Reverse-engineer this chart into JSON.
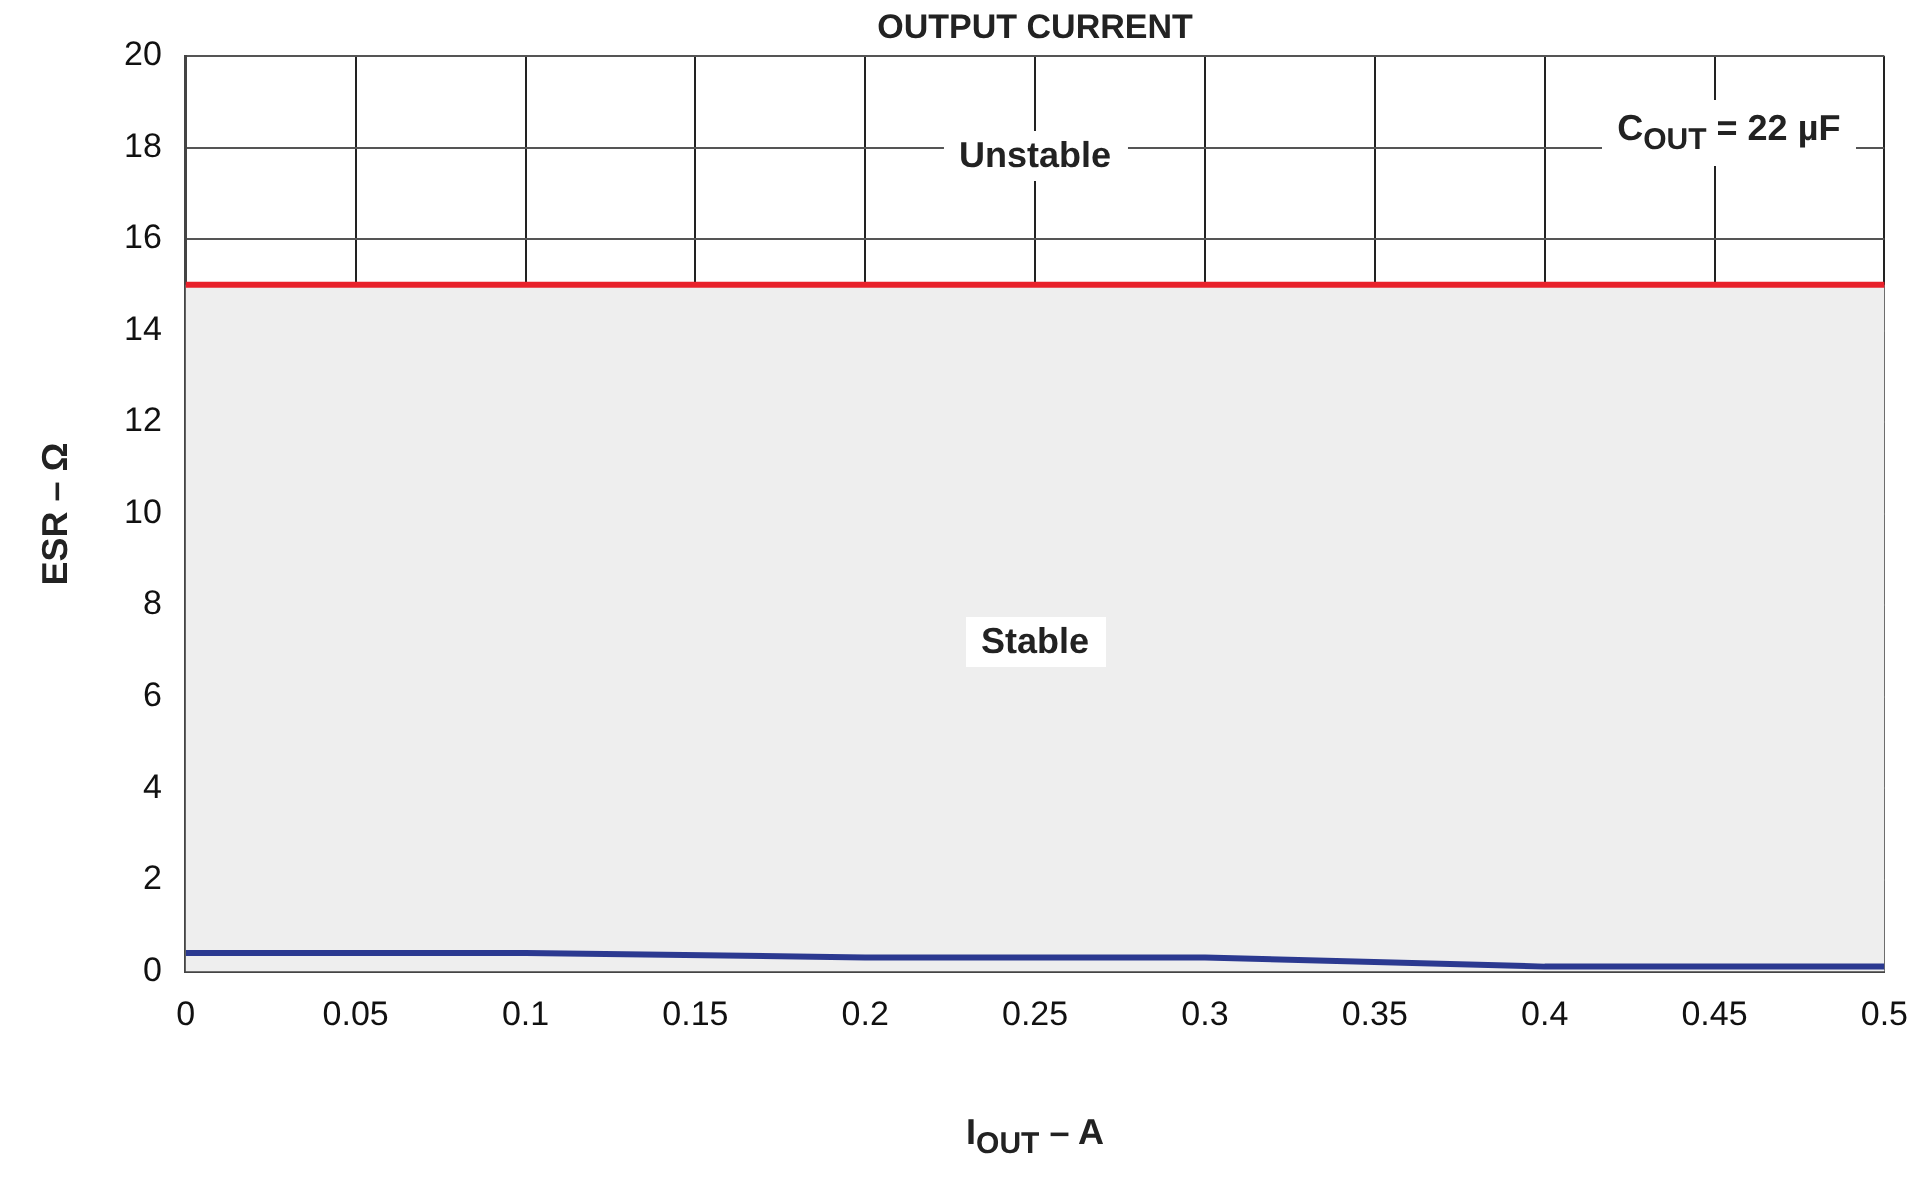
{
  "chart_data": {
    "type": "line",
    "title": "OUTPUT CURRENT",
    "xlabel": "I$_{OUT}$ – A",
    "ylabel": "ESR – Ω",
    "x": [
      0,
      0.1,
      0.2,
      0.3,
      0.4,
      0.5
    ],
    "series": [
      {
        "color": "#2b3990",
        "values": [
          0.4,
          0.4,
          0.3,
          0.3,
          0.1,
          0.1
        ]
      }
    ],
    "xlim": [
      0,
      0.5
    ],
    "xticks": [
      0,
      0.05,
      0.1,
      0.15,
      0.2,
      0.25,
      0.3,
      0.35,
      0.4,
      0.45,
      0.5
    ],
    "ylim": [
      0,
      20
    ],
    "yticks": [
      0,
      2,
      4,
      6,
      8,
      10,
      12,
      14,
      16,
      18,
      20
    ],
    "grid": true,
    "legend": false,
    "marker": "none",
    "line_style": "solid",
    "ref_lines": [
      {
        "axis": "y",
        "value": 15,
        "color": "#e8202a",
        "line_style": "solid"
      }
    ],
    "bands": [
      {
        "axis": "y",
        "from": 0,
        "to": 15,
        "color": "#eeeeee"
      }
    ],
    "annotations": [
      "Unstable",
      "Stable",
      "C$_{OUT}$ = 22 µF"
    ]
  }
}
